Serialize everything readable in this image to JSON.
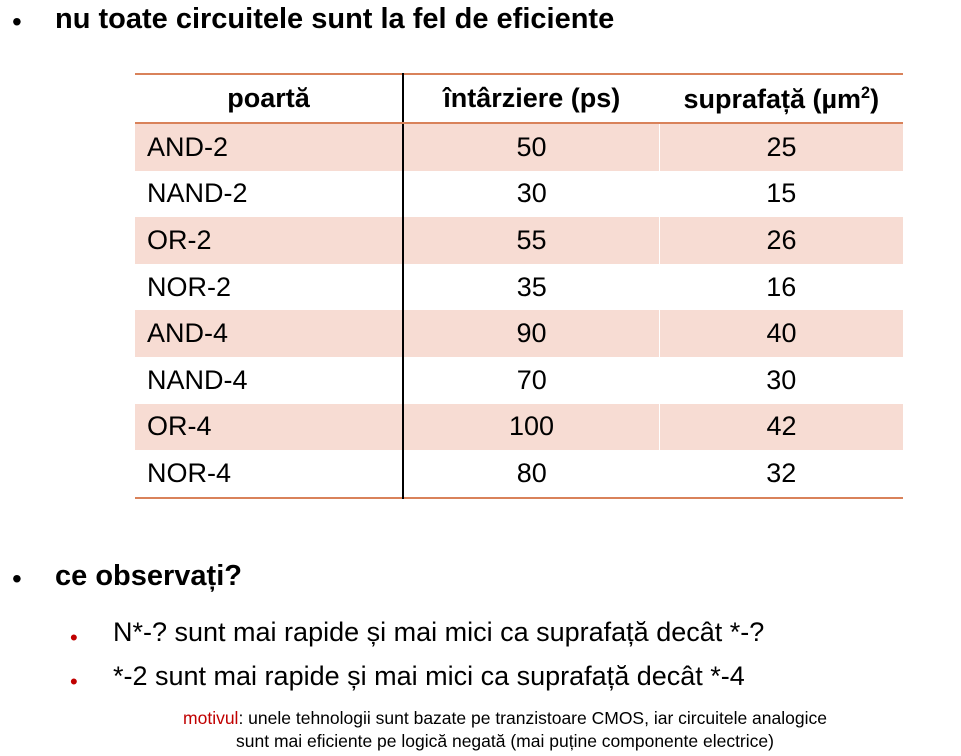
{
  "bullets": {
    "first": "nu toate circuitele sunt la fel de eficiente",
    "second": "ce observați?"
  },
  "bullet_symbol": "•",
  "table": {
    "headers": {
      "gate": "poartă",
      "delay": "întârziere (ps)",
      "area_prefix": "suprafață (µm",
      "area_sup": "2",
      "area_suffix": ")"
    },
    "rows": [
      {
        "gate": "AND-2",
        "delay": "50",
        "area": "25"
      },
      {
        "gate": "NAND-2",
        "delay": "30",
        "area": "15"
      },
      {
        "gate": "OR-2",
        "delay": "55",
        "area": "26"
      },
      {
        "gate": "NOR-2",
        "delay": "35",
        "area": "16"
      },
      {
        "gate": "AND-4",
        "delay": "90",
        "area": "40"
      },
      {
        "gate": "NAND-4",
        "delay": "70",
        "area": "30"
      },
      {
        "gate": "OR-4",
        "delay": "100",
        "area": "42"
      },
      {
        "gate": "NOR-4",
        "delay": "80",
        "area": "32"
      }
    ]
  },
  "observations": [
    "N*-? sunt mai rapide și mai mici ca suprafață decât *-?",
    "*-2 sunt mai rapide și mai mici ca suprafață decât *-4"
  ],
  "note": {
    "keyword": "motivul",
    "line1": ": unele tehnologii sunt bazate pe tranzistoare CMOS,  iar circuitele analogice",
    "line2": "sunt mai eficiente pe logică negată (mai puține componente electrice)"
  },
  "colors": {
    "table_rule": "#d9825a",
    "row_shade": "#f7dcd3",
    "accent_red": "#c00000"
  }
}
